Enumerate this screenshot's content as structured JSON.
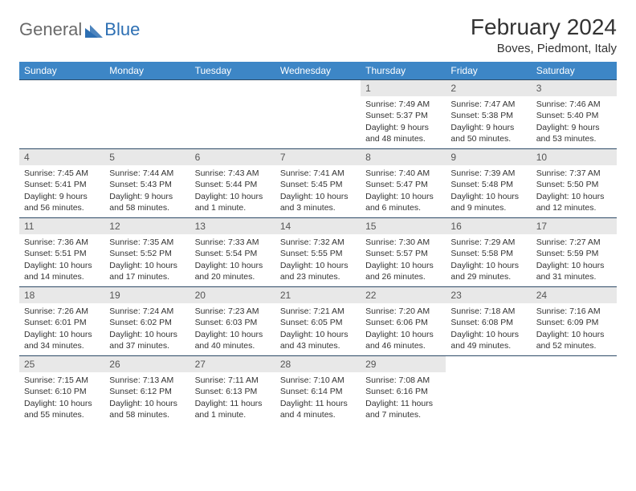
{
  "logo": {
    "general": "General",
    "blue": "Blue"
  },
  "title": "February 2024",
  "location": "Boves, Piedmont, Italy",
  "colors": {
    "header_bg": "#3d86c6",
    "header_text": "#ffffff",
    "row_border": "#2d4a66",
    "daynum_bg": "#e8e8e8",
    "logo_gray": "#6a6a6a",
    "logo_blue": "#2d6fb3"
  },
  "weekdays": [
    "Sunday",
    "Monday",
    "Tuesday",
    "Wednesday",
    "Thursday",
    "Friday",
    "Saturday"
  ],
  "grid": [
    [
      null,
      null,
      null,
      null,
      {
        "n": "1",
        "sunrise": "Sunrise: 7:49 AM",
        "sunset": "Sunset: 5:37 PM",
        "day1": "Daylight: 9 hours",
        "day2": "and 48 minutes."
      },
      {
        "n": "2",
        "sunrise": "Sunrise: 7:47 AM",
        "sunset": "Sunset: 5:38 PM",
        "day1": "Daylight: 9 hours",
        "day2": "and 50 minutes."
      },
      {
        "n": "3",
        "sunrise": "Sunrise: 7:46 AM",
        "sunset": "Sunset: 5:40 PM",
        "day1": "Daylight: 9 hours",
        "day2": "and 53 minutes."
      }
    ],
    [
      {
        "n": "4",
        "sunrise": "Sunrise: 7:45 AM",
        "sunset": "Sunset: 5:41 PM",
        "day1": "Daylight: 9 hours",
        "day2": "and 56 minutes."
      },
      {
        "n": "5",
        "sunrise": "Sunrise: 7:44 AM",
        "sunset": "Sunset: 5:43 PM",
        "day1": "Daylight: 9 hours",
        "day2": "and 58 minutes."
      },
      {
        "n": "6",
        "sunrise": "Sunrise: 7:43 AM",
        "sunset": "Sunset: 5:44 PM",
        "day1": "Daylight: 10 hours",
        "day2": "and 1 minute."
      },
      {
        "n": "7",
        "sunrise": "Sunrise: 7:41 AM",
        "sunset": "Sunset: 5:45 PM",
        "day1": "Daylight: 10 hours",
        "day2": "and 3 minutes."
      },
      {
        "n": "8",
        "sunrise": "Sunrise: 7:40 AM",
        "sunset": "Sunset: 5:47 PM",
        "day1": "Daylight: 10 hours",
        "day2": "and 6 minutes."
      },
      {
        "n": "9",
        "sunrise": "Sunrise: 7:39 AM",
        "sunset": "Sunset: 5:48 PM",
        "day1": "Daylight: 10 hours",
        "day2": "and 9 minutes."
      },
      {
        "n": "10",
        "sunrise": "Sunrise: 7:37 AM",
        "sunset": "Sunset: 5:50 PM",
        "day1": "Daylight: 10 hours",
        "day2": "and 12 minutes."
      }
    ],
    [
      {
        "n": "11",
        "sunrise": "Sunrise: 7:36 AM",
        "sunset": "Sunset: 5:51 PM",
        "day1": "Daylight: 10 hours",
        "day2": "and 14 minutes."
      },
      {
        "n": "12",
        "sunrise": "Sunrise: 7:35 AM",
        "sunset": "Sunset: 5:52 PM",
        "day1": "Daylight: 10 hours",
        "day2": "and 17 minutes."
      },
      {
        "n": "13",
        "sunrise": "Sunrise: 7:33 AM",
        "sunset": "Sunset: 5:54 PM",
        "day1": "Daylight: 10 hours",
        "day2": "and 20 minutes."
      },
      {
        "n": "14",
        "sunrise": "Sunrise: 7:32 AM",
        "sunset": "Sunset: 5:55 PM",
        "day1": "Daylight: 10 hours",
        "day2": "and 23 minutes."
      },
      {
        "n": "15",
        "sunrise": "Sunrise: 7:30 AM",
        "sunset": "Sunset: 5:57 PM",
        "day1": "Daylight: 10 hours",
        "day2": "and 26 minutes."
      },
      {
        "n": "16",
        "sunrise": "Sunrise: 7:29 AM",
        "sunset": "Sunset: 5:58 PM",
        "day1": "Daylight: 10 hours",
        "day2": "and 29 minutes."
      },
      {
        "n": "17",
        "sunrise": "Sunrise: 7:27 AM",
        "sunset": "Sunset: 5:59 PM",
        "day1": "Daylight: 10 hours",
        "day2": "and 31 minutes."
      }
    ],
    [
      {
        "n": "18",
        "sunrise": "Sunrise: 7:26 AM",
        "sunset": "Sunset: 6:01 PM",
        "day1": "Daylight: 10 hours",
        "day2": "and 34 minutes."
      },
      {
        "n": "19",
        "sunrise": "Sunrise: 7:24 AM",
        "sunset": "Sunset: 6:02 PM",
        "day1": "Daylight: 10 hours",
        "day2": "and 37 minutes."
      },
      {
        "n": "20",
        "sunrise": "Sunrise: 7:23 AM",
        "sunset": "Sunset: 6:03 PM",
        "day1": "Daylight: 10 hours",
        "day2": "and 40 minutes."
      },
      {
        "n": "21",
        "sunrise": "Sunrise: 7:21 AM",
        "sunset": "Sunset: 6:05 PM",
        "day1": "Daylight: 10 hours",
        "day2": "and 43 minutes."
      },
      {
        "n": "22",
        "sunrise": "Sunrise: 7:20 AM",
        "sunset": "Sunset: 6:06 PM",
        "day1": "Daylight: 10 hours",
        "day2": "and 46 minutes."
      },
      {
        "n": "23",
        "sunrise": "Sunrise: 7:18 AM",
        "sunset": "Sunset: 6:08 PM",
        "day1": "Daylight: 10 hours",
        "day2": "and 49 minutes."
      },
      {
        "n": "24",
        "sunrise": "Sunrise: 7:16 AM",
        "sunset": "Sunset: 6:09 PM",
        "day1": "Daylight: 10 hours",
        "day2": "and 52 minutes."
      }
    ],
    [
      {
        "n": "25",
        "sunrise": "Sunrise: 7:15 AM",
        "sunset": "Sunset: 6:10 PM",
        "day1": "Daylight: 10 hours",
        "day2": "and 55 minutes."
      },
      {
        "n": "26",
        "sunrise": "Sunrise: 7:13 AM",
        "sunset": "Sunset: 6:12 PM",
        "day1": "Daylight: 10 hours",
        "day2": "and 58 minutes."
      },
      {
        "n": "27",
        "sunrise": "Sunrise: 7:11 AM",
        "sunset": "Sunset: 6:13 PM",
        "day1": "Daylight: 11 hours",
        "day2": "and 1 minute."
      },
      {
        "n": "28",
        "sunrise": "Sunrise: 7:10 AM",
        "sunset": "Sunset: 6:14 PM",
        "day1": "Daylight: 11 hours",
        "day2": "and 4 minutes."
      },
      {
        "n": "29",
        "sunrise": "Sunrise: 7:08 AM",
        "sunset": "Sunset: 6:16 PM",
        "day1": "Daylight: 11 hours",
        "day2": "and 7 minutes."
      },
      null,
      null
    ]
  ]
}
